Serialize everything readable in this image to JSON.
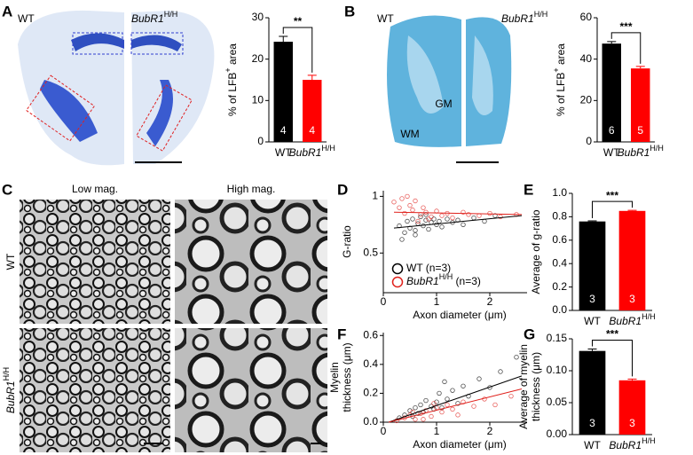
{
  "panel_labels": [
    "A",
    "B",
    "C",
    "D",
    "E",
    "F",
    "G"
  ],
  "image_labels": {
    "brain": {
      "left": "WT",
      "right": [
        {
          "text": "BubR1",
          "italic": true
        },
        {
          "text": "H/H",
          "sup": true
        }
      ]
    },
    "spinal": {
      "left": "WT",
      "right": [
        {
          "text": "BubR1",
          "italic": true
        },
        {
          "text": "H/H",
          "sup": true
        }
      ],
      "regions": [
        "GM",
        "WM"
      ]
    },
    "em": {
      "columns": [
        "Low mag.",
        "High mag."
      ],
      "rows": [
        "WT",
        [
          {
            "text": "BubR1",
            "italic": true
          },
          {
            "text": "H/H",
            "sup": true
          }
        ]
      ]
    }
  },
  "chart_data": [
    {
      "type": "bar",
      "y_label": [
        [
          "% of LFB",
          {
            "text": "+",
            "sup": true
          },
          " area"
        ]
      ],
      "categories": [
        "WT",
        [
          {
            "text": "BubR1",
            "italic": true
          },
          {
            "text": "H/H",
            "sup": true
          }
        ]
      ],
      "values": [
        24.2,
        15
      ],
      "errors": [
        1.3,
        1.1
      ],
      "n": [
        4,
        4
      ],
      "colors": [
        "#000000",
        "#ff0000"
      ],
      "significance": "**",
      "ylim": [
        0,
        30
      ],
      "yticks": [
        0,
        10,
        20,
        30
      ]
    },
    {
      "type": "bar",
      "y_label": [
        [
          "% of LFB",
          {
            "text": "+",
            "sup": true
          },
          " area"
        ]
      ],
      "categories": [
        "WT",
        [
          {
            "text": "BubR1",
            "italic": true
          },
          {
            "text": "H/H",
            "sup": true
          }
        ]
      ],
      "values": [
        47.5,
        35.5
      ],
      "errors": [
        1,
        1
      ],
      "n": [
        6,
        5
      ],
      "colors": [
        "#000000",
        "#ff0000"
      ],
      "significance": "***",
      "ylim": [
        0,
        60
      ],
      "yticks": [
        0,
        20,
        40,
        60
      ]
    },
    {
      "type": "scatter",
      "y_label": [
        "G-ratio"
      ],
      "x_label": "Axon diameter (μm)",
      "xlim": [
        0,
        2.7
      ],
      "xticks": [
        0,
        1,
        2
      ],
      "ylim": [
        0.15,
        1.05
      ],
      "yticks": [
        0.5,
        1
      ],
      "legend": "lower left",
      "series": [
        {
          "name": [
            "WT (n=3)"
          ],
          "color": "#000000",
          "x": [
            0.3,
            0.4,
            0.45,
            0.5,
            0.55,
            0.6,
            0.65,
            0.7,
            0.75,
            0.8,
            0.85,
            0.9,
            0.95,
            1.0,
            1.05,
            1.1,
            1.2,
            1.3,
            1.4,
            1.5,
            1.7,
            1.9,
            2.1,
            0.35,
            0.6,
            0.8
          ],
          "values": [
            0.74,
            0.68,
            0.78,
            0.72,
            0.8,
            0.7,
            0.76,
            0.82,
            0.74,
            0.79,
            0.71,
            0.77,
            0.8,
            0.75,
            0.78,
            0.73,
            0.8,
            0.77,
            0.79,
            0.75,
            0.81,
            0.78,
            0.83,
            0.62,
            0.66,
            0.84
          ]
        },
        {
          "name": [
            {
              "text": "BubR1",
              "italic": true
            },
            {
              "text": "H/H",
              "sup": true
            },
            " (n=3)"
          ],
          "color": "#e0201b",
          "x": [
            0.2,
            0.3,
            0.35,
            0.4,
            0.5,
            0.55,
            0.6,
            0.7,
            0.75,
            0.8,
            0.9,
            1.0,
            1.1,
            1.2,
            1.3,
            1.5,
            1.6,
            1.8,
            2.0,
            2.2,
            2.5,
            0.45,
            0.65,
            0.85
          ],
          "values": [
            0.95,
            0.9,
            0.98,
            0.85,
            0.92,
            0.88,
            0.96,
            0.84,
            0.9,
            0.86,
            0.82,
            0.87,
            0.83,
            0.85,
            0.81,
            0.86,
            0.84,
            0.83,
            0.85,
            0.82,
            0.84,
            1.0,
            0.78,
            0.8
          ]
        }
      ],
      "fits": [
        {
          "color": "#000000",
          "x": [
            0.2,
            2.6
          ],
          "values": [
            0.72,
            0.83
          ]
        },
        {
          "color": "#e0201b",
          "x": [
            0.2,
            2.6
          ],
          "values": [
            0.86,
            0.84
          ]
        }
      ]
    },
    {
      "type": "bar",
      "y_label": [
        "Average of g-ratio"
      ],
      "categories": [
        "WT",
        [
          {
            "text": "BubR1",
            "italic": true
          },
          {
            "text": "H/H",
            "sup": true
          }
        ]
      ],
      "values": [
        0.76,
        0.85
      ],
      "errors": [
        0.005,
        0.005
      ],
      "n": [
        3,
        3
      ],
      "colors": [
        "#000000",
        "#ff0000"
      ],
      "significance": "***",
      "ylim": [
        0,
        1
      ],
      "yticks": [
        {
          "value": 0,
          "label": "0.0"
        },
        0.2,
        0.4,
        0.6,
        0.8,
        {
          "value": 1,
          "label": "1.0"
        }
      ]
    },
    {
      "type": "scatter",
      "y_label": [
        "Myelin",
        "thickness (μm)"
      ],
      "x_label": "Axon diameter (μm)",
      "xlim": [
        0,
        2.7
      ],
      "xticks": [
        0,
        1,
        2
      ],
      "ylim": [
        0,
        0.62
      ],
      "yticks": [
        {
          "value": 0,
          "label": "0.0"
        },
        0.2,
        0.4,
        0.6
      ],
      "series": [
        {
          "color": "#000000",
          "x": [
            0.3,
            0.4,
            0.5,
            0.55,
            0.6,
            0.7,
            0.75,
            0.8,
            0.9,
            1.0,
            1.05,
            1.1,
            1.2,
            1.3,
            1.4,
            1.5,
            1.6,
            1.8,
            2.0,
            2.2,
            2.5,
            0.65,
            0.95,
            1.15
          ],
          "values": [
            0.03,
            0.05,
            0.08,
            0.04,
            0.1,
            0.12,
            0.07,
            0.15,
            0.11,
            0.14,
            0.2,
            0.1,
            0.16,
            0.22,
            0.13,
            0.25,
            0.18,
            0.3,
            0.24,
            0.35,
            0.45,
            0.06,
            0.09,
            0.28
          ]
        },
        {
          "color": "#e0201b",
          "x": [
            0.25,
            0.4,
            0.5,
            0.6,
            0.7,
            0.8,
            0.9,
            1.0,
            1.1,
            1.2,
            1.3,
            1.5,
            1.7,
            1.9,
            2.1,
            2.4,
            0.55,
            0.75,
            0.95,
            1.4
          ],
          "values": [
            0.01,
            0.03,
            0.05,
            0.02,
            0.06,
            0.08,
            0.04,
            0.1,
            0.07,
            0.12,
            0.09,
            0.14,
            0.11,
            0.16,
            0.12,
            0.18,
            0.07,
            0.02,
            0.13,
            0.05
          ]
        }
      ],
      "fits": [
        {
          "color": "#000000",
          "x": [
            0.1,
            2.6
          ],
          "values": [
            0,
            0.32
          ]
        },
        {
          "color": "#e0201b",
          "x": [
            0.1,
            2.6
          ],
          "values": [
            0,
            0.23
          ]
        }
      ]
    },
    {
      "type": "bar",
      "y_label": [
        "Average of myelin",
        "thickness (μm)"
      ],
      "categories": [
        "WT",
        [
          {
            "text": "BubR1",
            "italic": true
          },
          {
            "text": "H/H",
            "sup": true
          }
        ]
      ],
      "values": [
        0.131,
        0.085
      ],
      "errors": [
        0.003,
        0.002
      ],
      "n": [
        3,
        3
      ],
      "colors": [
        "#000000",
        "#ff0000"
      ],
      "significance": "***",
      "ylim": [
        0,
        0.15
      ],
      "yticks": [
        {
          "value": 0,
          "label": "0.00"
        },
        0.05,
        {
          "value": 0.1,
          "label": "0.10"
        },
        0.15
      ]
    }
  ]
}
